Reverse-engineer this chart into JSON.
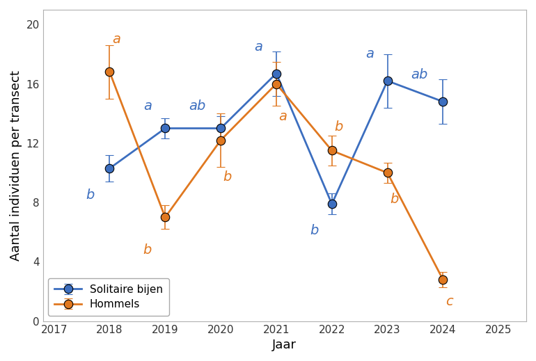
{
  "years": [
    2018,
    2019,
    2020,
    2021,
    2022,
    2023,
    2024
  ],
  "solitaire_bijen": {
    "values": [
      10.3,
      13.0,
      13.0,
      16.7,
      7.9,
      16.2,
      14.8
    ],
    "errors": [
      0.9,
      0.7,
      0.8,
      1.5,
      0.7,
      1.8,
      1.5
    ],
    "color": "#3C6EBF",
    "label": "Solitaire bijen",
    "letters": [
      "b",
      "a",
      "ab",
      "a",
      "b",
      "a",
      "ab"
    ],
    "letter_offsets_x": [
      -0.35,
      -0.32,
      -0.42,
      -0.32,
      -0.32,
      -0.32,
      -0.42
    ],
    "letter_offsets_y": [
      -1.8,
      1.5,
      1.5,
      1.8,
      -1.8,
      1.8,
      1.8
    ]
  },
  "hommels": {
    "values": [
      16.8,
      7.0,
      12.2,
      16.0,
      11.5,
      10.0,
      2.8
    ],
    "errors": [
      1.8,
      0.8,
      1.8,
      1.5,
      1.0,
      0.7,
      0.5
    ],
    "color": "#E07820",
    "label": "Hommels",
    "letters": [
      "a",
      "b",
      "b",
      "a",
      "b",
      "b",
      "c"
    ],
    "letter_offsets_x": [
      0.12,
      -0.32,
      0.12,
      0.12,
      0.12,
      0.12,
      0.12
    ],
    "letter_offsets_y": [
      2.2,
      -2.2,
      -2.5,
      -2.2,
      1.6,
      -1.8,
      -1.5
    ]
  },
  "xlabel": "Jaar",
  "ylabel": "Aantal individuen per transect",
  "xlim": [
    2016.8,
    2025.5
  ],
  "ylim": [
    0,
    21
  ],
  "yticks": [
    0,
    4,
    8,
    12,
    16,
    20
  ],
  "xticks": [
    2017,
    2018,
    2019,
    2020,
    2021,
    2022,
    2023,
    2024,
    2025
  ],
  "legend_loc": "lower left",
  "background_color": "#ffffff",
  "plot_bg_color": "#ffffff",
  "border_color": "#b0b0b0",
  "marker": "o",
  "markersize": 9,
  "linewidth": 2.0,
  "letter_fontsize": 14,
  "axis_fontsize": 13,
  "tick_fontsize": 11
}
